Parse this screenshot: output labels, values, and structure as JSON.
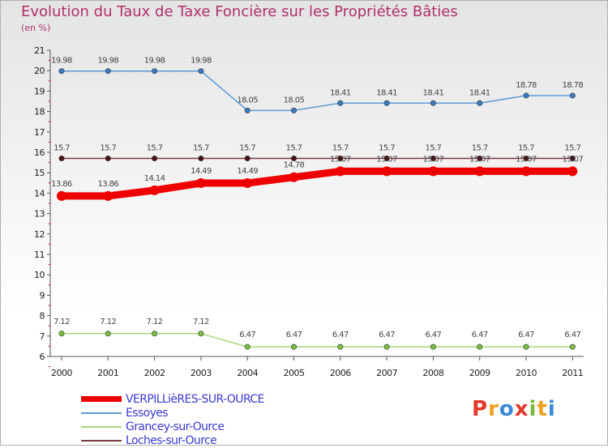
{
  "title": "Evolution du Taux de Taxe Foncière sur les Propriétés Bâties",
  "unit": "(en %)",
  "logo": {
    "letters": [
      "P",
      "r",
      "o",
      "x",
      "i",
      "t",
      "i"
    ],
    "colors": [
      "#e23a2a",
      "#f0a020",
      "#3a8ad8",
      "#e23a2a",
      "#7ab83a",
      "#f0a020",
      "#3a8ad8"
    ]
  },
  "chart_data": {
    "type": "line",
    "title": "Evolution du Taux de Taxe Foncière sur les Propriétés Bâties",
    "ylabel": "(en %)",
    "ylim": [
      6,
      21
    ],
    "yticks": [
      6,
      7,
      8,
      9,
      10,
      11,
      12,
      13,
      14,
      15,
      16,
      17,
      18,
      19,
      20,
      21
    ],
    "categories": [
      "2000",
      "2001",
      "2002",
      "2003",
      "2004",
      "2005",
      "2006",
      "2007",
      "2008",
      "2009",
      "2010",
      "2011"
    ],
    "series": [
      {
        "name": "Essoyes",
        "color": "#5b9bd5",
        "marker": "#3a7cc0",
        "values": [
          19.98,
          19.98,
          19.98,
          19.98,
          18.05,
          18.05,
          18.41,
          18.41,
          18.41,
          18.41,
          18.78,
          18.78
        ],
        "labels": [
          "19.98",
          "19.98",
          "19.98",
          "19.98",
          "18.05",
          "18.05",
          "18.41",
          "18.41",
          "18.41",
          "18.41",
          "18.78",
          "18.78"
        ]
      },
      {
        "name": "Loches-sur-Ource",
        "color": "#7a3a44",
        "marker": "#4a1018",
        "values": [
          15.7,
          15.7,
          15.7,
          15.7,
          15.7,
          15.7,
          15.7,
          15.7,
          15.7,
          15.7,
          15.7,
          15.7
        ],
        "labels": [
          "15.7",
          "15.7",
          "15.7",
          "15.7",
          "15.7",
          "15.7",
          "15.7",
          "15.7",
          "15.7",
          "15.7",
          "15.7",
          "15.7"
        ]
      },
      {
        "name": "VERPILLièRES-SUR-OURCE",
        "color": "#ee0000",
        "marker": "#ee0000",
        "values": [
          13.86,
          13.86,
          14.14,
          14.49,
          14.49,
          14.78,
          15.07,
          15.07,
          15.07,
          15.07,
          15.07,
          15.07
        ],
        "labels": [
          "13.86",
          "13.86",
          "14.14",
          "14.49",
          "14.49",
          "14.78",
          "15.07",
          "15.07",
          "15.07",
          "15.07",
          "15.07",
          "15.07"
        ]
      },
      {
        "name": "Grancey-sur-Ource",
        "color": "#a8d878",
        "marker": "#7ac040",
        "values": [
          7.12,
          7.12,
          7.12,
          7.12,
          6.47,
          6.47,
          6.47,
          6.47,
          6.47,
          6.47,
          6.47,
          6.47
        ],
        "labels": [
          "7.12",
          "7.12",
          "7.12",
          "7.12",
          "6.47",
          "6.47",
          "6.47",
          "6.47",
          "6.47",
          "6.47",
          "6.47",
          "6.47"
        ]
      }
    ],
    "legend": [
      "VERPILLièRES-SUR-OURCE",
      "Essoyes",
      "Grancey-sur-Ource",
      "Loches-sur-Ource"
    ],
    "legend_position": "bottom-left"
  }
}
